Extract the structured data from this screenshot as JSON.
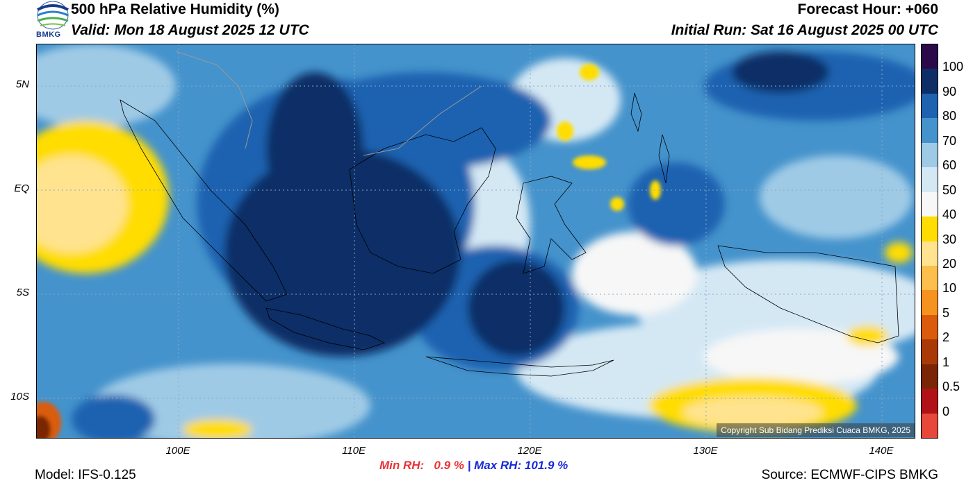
{
  "header": {
    "title": "500 hPa Relative Humidity (%)",
    "valid": "Valid: Mon 18 August 2025 12 UTC",
    "forecast_hour": "Forecast Hour: +060",
    "initial_run": "Initial Run: Sat 16 August 2025 00 UTC",
    "logo_text": "BMKG"
  },
  "map": {
    "lat_ticks": [
      "5N",
      "EQ",
      "5S",
      "10S"
    ],
    "lon_ticks": [
      "100E",
      "110E",
      "120E",
      "130E",
      "140E"
    ],
    "copyright": "Copyright Sub Bidang Prediksi Cuaca BMKG, 2025"
  },
  "colorbar": {
    "labels": [
      "100",
      "90",
      "80",
      "70",
      "60",
      "50",
      "40",
      "30",
      "20",
      "10",
      "5",
      "2",
      "1",
      "0.5",
      "0"
    ],
    "colors": [
      "#2c0a4a",
      "#0d2f66",
      "#1f62b0",
      "#4593cc",
      "#9fcae6",
      "#d4e8f4",
      "#f7f7f7",
      "#ffdd00",
      "#ffe38e",
      "#fcbf4d",
      "#f6921e",
      "#da5b0c",
      "#a93a08",
      "#7a2606",
      "#b01217",
      "#e8483a"
    ]
  },
  "footer": {
    "min_rh_label": "Min RH:",
    "min_rh_value": "0.9 %",
    "separator": "|",
    "max_rh_label": "Max RH:",
    "max_rh_value": "101.9 %",
    "model": "Model: IFS-0.125",
    "source": "Source: ECMWF-CIPS BMKG"
  }
}
